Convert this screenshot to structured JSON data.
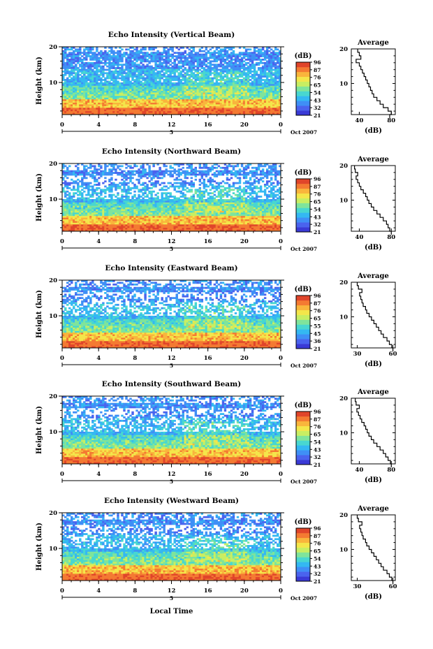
{
  "colors": {
    "colormap": [
      "#3a3ad6",
      "#4a63ee",
      "#3f8ff6",
      "#34b8f2",
      "#48d7d0",
      "#7fe49b",
      "#c8ee62",
      "#f4e64a",
      "#f9b53c",
      "#f47a32",
      "#e0452a"
    ],
    "axis": "#000000",
    "profile_line": "#000000"
  },
  "chart_data": [
    {
      "type": "heatmap",
      "title": "Echo Intensity (Vertical Beam)",
      "ylabel": "Height (km)",
      "xticks": [
        "0",
        "4",
        "8",
        "12",
        "16",
        "20",
        "0"
      ],
      "yticks": [
        "10",
        "20"
      ],
      "date_label": "Oct 2007",
      "day_label": "5",
      "colorbar_unit": "(dB)",
      "colorbar_ticks": [
        "96",
        "87",
        "76",
        "65",
        "54",
        "43",
        "32",
        "21"
      ],
      "ylim": [
        1,
        20
      ]
    },
    {
      "type": "line",
      "title": "Average",
      "yticks": [
        "10",
        "20"
      ],
      "xticks": [
        "40",
        "80"
      ],
      "xlabel": "(dB)",
      "xlim": [
        30,
        85
      ],
      "ylim": [
        1,
        20
      ],
      "x": [
        78,
        80,
        76,
        70,
        66,
        62,
        58,
        56,
        54,
        52,
        50,
        48,
        46,
        44,
        42,
        40,
        36,
        42,
        40,
        38
      ],
      "y": [
        1,
        2,
        3,
        4,
        5,
        6,
        7,
        8,
        9,
        10,
        11,
        12,
        13,
        14,
        15,
        16,
        17,
        18,
        19,
        20
      ]
    },
    {
      "type": "heatmap",
      "title": "Echo Intensity (Northward Beam)",
      "ylabel": "Height (km)",
      "xticks": [
        "0",
        "4",
        "8",
        "12",
        "16",
        "20",
        "0"
      ],
      "yticks": [
        "10",
        "20"
      ],
      "date_label": "Oct 2007",
      "day_label": "5",
      "colorbar_unit": "(dB)",
      "colorbar_ticks": [
        "96",
        "87",
        "76",
        "65",
        "54",
        "43",
        "32",
        "21"
      ],
      "ylim": [
        1,
        20
      ]
    },
    {
      "type": "line",
      "title": "Average",
      "yticks": [
        "10",
        "20"
      ],
      "xticks": [
        "40",
        "80"
      ],
      "xlabel": "(dB)",
      "xlim": [
        30,
        85
      ],
      "ylim": [
        1,
        20
      ],
      "x": [
        80,
        78,
        76,
        74,
        70,
        66,
        62,
        58,
        55,
        52,
        50,
        48,
        45,
        42,
        40,
        38,
        36,
        38,
        35,
        34
      ],
      "y": [
        1,
        2,
        3,
        4,
        5,
        6,
        7,
        8,
        9,
        10,
        11,
        12,
        13,
        14,
        15,
        16,
        17,
        18,
        19,
        20
      ]
    },
    {
      "type": "heatmap",
      "title": "Echo Intensity (Eastward Beam)",
      "ylabel": "Height (km)",
      "xticks": [
        "0",
        "4",
        "8",
        "12",
        "16",
        "20",
        "0"
      ],
      "yticks": [
        "10",
        "20"
      ],
      "date_label": "Oct 2007",
      "day_label": "5",
      "colorbar_unit": "(dB)",
      "colorbar_ticks": [
        "96",
        "87",
        "76",
        "65",
        "55",
        "45",
        "36",
        "21"
      ],
      "ylim": [
        1,
        20
      ]
    },
    {
      "type": "line",
      "title": "Average",
      "yticks": [
        "10",
        "20"
      ],
      "xticks": [
        "30",
        "60"
      ],
      "xlabel": "(dB)",
      "xlim": [
        25,
        62
      ],
      "ylim": [
        1,
        20
      ],
      "x": [
        60,
        59,
        57,
        55,
        52,
        50,
        48,
        46,
        44,
        42,
        40,
        38,
        37,
        35,
        34,
        33,
        32,
        34,
        31,
        30
      ],
      "y": [
        1,
        2,
        3,
        4,
        5,
        6,
        7,
        8,
        9,
        10,
        11,
        12,
        13,
        14,
        15,
        16,
        17,
        18,
        19,
        20
      ]
    },
    {
      "type": "heatmap",
      "title": "Echo Intensity (Southward Beam)",
      "ylabel": "Height (km)",
      "xticks": [
        "0",
        "4",
        "8",
        "12",
        "16",
        "20",
        "0"
      ],
      "yticks": [
        "10",
        "20"
      ],
      "date_label": "Oct 2007",
      "day_label": "5",
      "colorbar_unit": "(dB)",
      "colorbar_ticks": [
        "96",
        "87",
        "76",
        "65",
        "54",
        "43",
        "32",
        "21"
      ],
      "ylim": [
        1,
        20
      ]
    },
    {
      "type": "line",
      "title": "Average",
      "yticks": [
        "10",
        "20"
      ],
      "xticks": [
        "40",
        "80"
      ],
      "xlabel": "(dB)",
      "xlim": [
        30,
        85
      ],
      "ylim": [
        1,
        20
      ],
      "x": [
        80,
        79,
        76,
        73,
        70,
        66,
        62,
        58,
        55,
        52,
        50,
        48,
        46,
        43,
        41,
        39,
        37,
        40,
        36,
        35
      ],
      "y": [
        1,
        2,
        3,
        4,
        5,
        6,
        7,
        8,
        9,
        10,
        11,
        12,
        13,
        14,
        15,
        16,
        17,
        18,
        19,
        20
      ]
    },
    {
      "type": "heatmap",
      "title": "Echo Intensity (Westward Beam)",
      "ylabel": "Height (km)",
      "xticks": [
        "0",
        "4",
        "8",
        "12",
        "16",
        "20",
        "0"
      ],
      "yticks": [
        "10",
        "20"
      ],
      "date_label": "Oct 2007",
      "day_label": "5",
      "colorbar_unit": "(dB)",
      "colorbar_ticks": [
        "96",
        "87",
        "76",
        "65",
        "54",
        "43",
        "32",
        "21"
      ],
      "xlabel": "Local Time",
      "ylim": [
        1,
        20
      ]
    },
    {
      "type": "line",
      "title": "Average",
      "yticks": [
        "10",
        "20"
      ],
      "xticks": [
        "30",
        "60"
      ],
      "xlabel": "(dB)",
      "xlim": [
        25,
        62
      ],
      "ylim": [
        1,
        20
      ],
      "x": [
        60,
        59,
        57,
        55,
        52,
        50,
        48,
        46,
        44,
        42,
        40,
        38,
        37,
        35,
        34,
        33,
        32,
        34,
        31,
        30
      ],
      "y": [
        1,
        2,
        3,
        4,
        5,
        6,
        7,
        8,
        9,
        10,
        11,
        12,
        13,
        14,
        15,
        16,
        17,
        18,
        19,
        20
      ]
    }
  ]
}
